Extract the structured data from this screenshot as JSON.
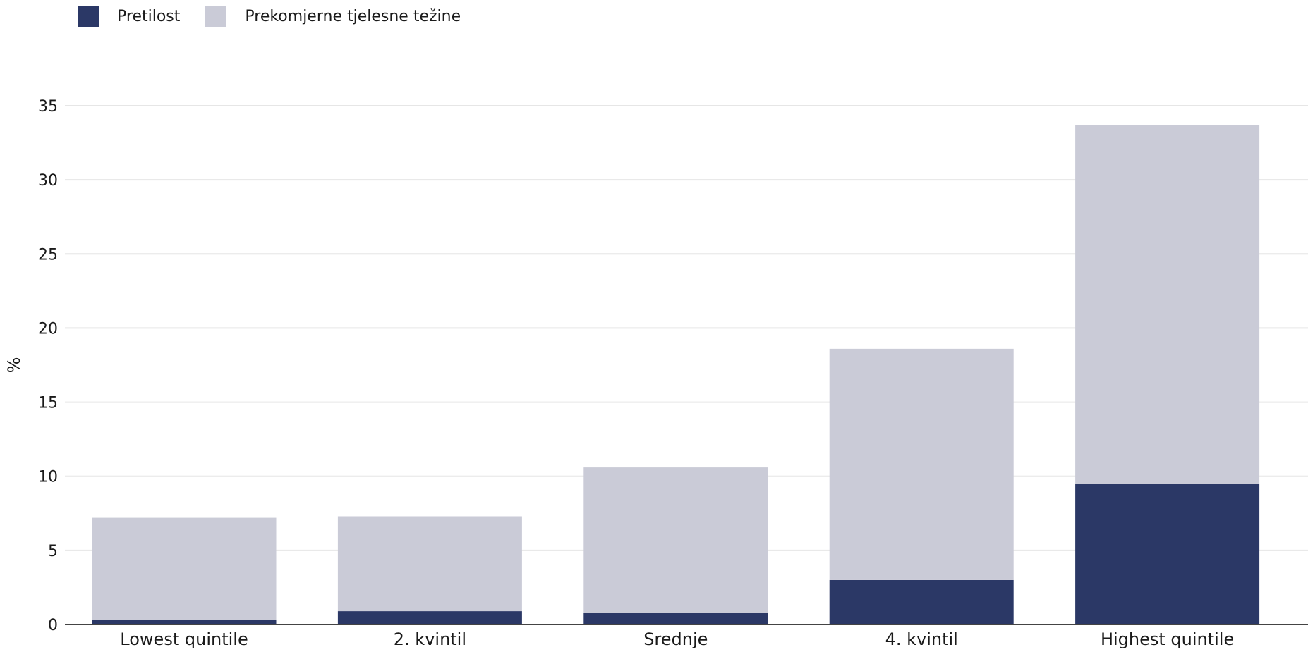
{
  "colors": {
    "obesity": "#2b3866",
    "overweight": "#cacbd7",
    "grid": "#e6e6e6",
    "axis": "#444444",
    "text": "#1a1a1a"
  },
  "legend": [
    {
      "label": "Pretilost",
      "color_key": "obesity"
    },
    {
      "label": "Prekomjerne tjelesne težine",
      "color_key": "overweight"
    }
  ],
  "chart_data": {
    "type": "bar",
    "stacked": true,
    "categories": [
      "Lowest quintile",
      "2. kvintil",
      "Srednje",
      "4. kvintil",
      "Highest quintile"
    ],
    "series": [
      {
        "name": "Pretilost",
        "values": [
          0.3,
          0.9,
          0.8,
          3.0,
          9.5
        ]
      },
      {
        "name": "Prekomjerne tjelesne težine",
        "values": [
          6.9,
          6.4,
          9.8,
          15.6,
          24.2
        ]
      }
    ],
    "ylabel": "%",
    "ylim": [
      0,
      35
    ],
    "yticks": [
      0,
      5,
      10,
      15,
      20,
      25,
      30,
      35
    ],
    "grid": true,
    "legend_position": "top-left"
  }
}
